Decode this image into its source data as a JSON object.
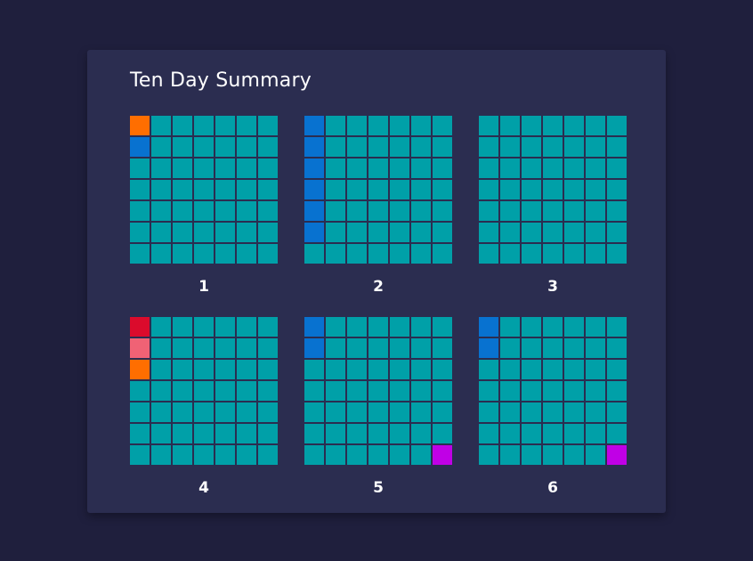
{
  "chart_data": {
    "type": "waffle",
    "title": "Ten Day Summary",
    "grid_rows": 7,
    "grid_cols": 7,
    "default_color": "#00a0a8",
    "colors": {
      "O": "#ff6e00",
      "B": "#0872d0",
      "R": "#db0b2c",
      "P": "#f06275",
      "M": "#c000e6",
      "T": "#00a0a8"
    },
    "panels": [
      {
        "label": "1",
        "cells": [
          "O",
          "B",
          "T",
          "T",
          "T",
          "T",
          "T"
        ],
        "special": []
      },
      {
        "label": "2",
        "cells": [
          "B",
          "B",
          "B",
          "B",
          "B",
          "B",
          "T"
        ],
        "special": []
      },
      {
        "label": "3",
        "cells": [
          "T",
          "T",
          "T",
          "T",
          "T",
          "T",
          "T"
        ],
        "special": []
      },
      {
        "label": "4",
        "cells": [
          "R",
          "P",
          "O",
          "T",
          "T",
          "T",
          "T"
        ],
        "special": []
      },
      {
        "label": "5",
        "cells": [
          "B",
          "B",
          "T",
          "T",
          "T",
          "T",
          "T"
        ],
        "special": [
          {
            "row": 6,
            "col": 6,
            "code": "M"
          }
        ]
      },
      {
        "label": "6",
        "cells": [
          "B",
          "B",
          "T",
          "T",
          "T",
          "T",
          "T"
        ],
        "special": [
          {
            "row": 6,
            "col": 6,
            "code": "M"
          }
        ]
      }
    ]
  }
}
